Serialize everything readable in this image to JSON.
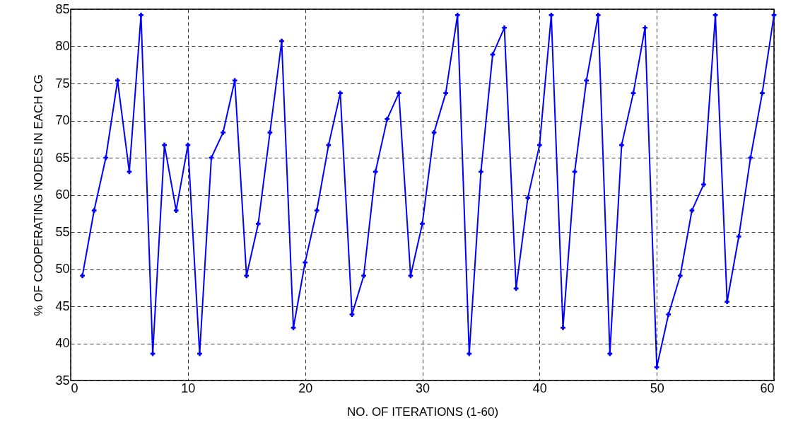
{
  "chart_data": {
    "type": "line",
    "xlabel": "NO. OF ITERATIONS (1-60)",
    "ylabel": "% OF COOPERATING NODES IN EACH CG",
    "x": [
      1,
      2,
      3,
      4,
      5,
      6,
      7,
      8,
      9,
      10,
      11,
      12,
      13,
      14,
      15,
      16,
      17,
      18,
      19,
      20,
      21,
      22,
      23,
      24,
      25,
      26,
      27,
      28,
      29,
      30,
      31,
      32,
      33,
      34,
      35,
      36,
      37,
      38,
      39,
      40,
      41,
      42,
      43,
      44,
      45,
      46,
      47,
      48,
      49,
      50,
      51,
      52,
      53,
      54,
      55,
      56,
      57,
      58,
      59,
      60
    ],
    "series": [
      {
        "color": "#0000ff",
        "values": [
          49.1,
          57.9,
          65,
          75.4,
          63.1,
          84.2,
          38.6,
          66.7,
          57.9,
          66.7,
          38.6,
          65,
          68.4,
          75.4,
          49.1,
          56.1,
          68.4,
          80.7,
          42.1,
          50.9,
          57.9,
          66.7,
          73.7,
          43.9,
          49.1,
          63.1,
          70.2,
          73.7,
          49.1,
          56.1,
          68.4,
          73.7,
          84.2,
          38.6,
          63.1,
          78.9,
          82.5,
          47.4,
          59.6,
          66.7,
          84.2,
          42.1,
          63.1,
          75.4,
          84.2,
          38.6,
          66.7,
          73.7,
          82.5,
          36.8,
          43.9,
          49.1,
          57.9,
          61.4,
          84.2,
          45.6,
          54.4,
          65,
          73.7,
          84.2
        ]
      }
    ],
    "xlim": [
      0,
      60
    ],
    "xticks": [
      0,
      10,
      20,
      30,
      40,
      50,
      60
    ],
    "ylim": [
      35,
      85
    ],
    "yticks": [
      35,
      40,
      45,
      50,
      55,
      60,
      65,
      70,
      75,
      80,
      85
    ],
    "grid": true,
    "marker": "cross",
    "line_style": "solid"
  }
}
